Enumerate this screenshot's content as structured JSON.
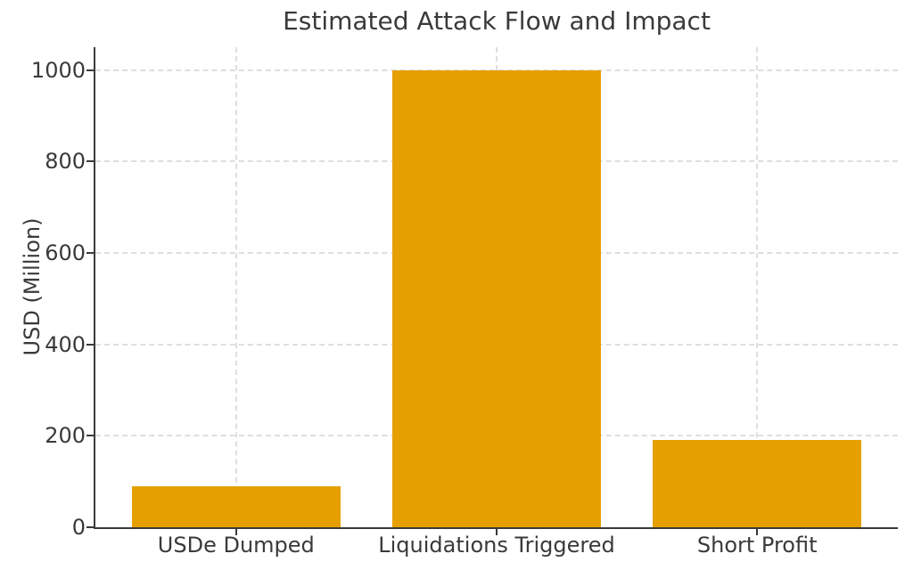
{
  "chart_data": {
    "type": "bar",
    "title": "Estimated Attack Flow and Impact",
    "categories": [
      "USDe Dumped",
      "Liquidations Triggered",
      "Short Profit"
    ],
    "values": [
      90,
      1000,
      190
    ],
    "xlabel": "",
    "ylabel": "USD (Million)",
    "ylim": [
      0,
      1050
    ],
    "yticks": [
      0,
      200,
      400,
      600,
      800,
      1000
    ],
    "bar_width_fraction": 0.8,
    "grid": "dashed",
    "legend": "none",
    "colors": {
      "bar": "#E69F00",
      "grid": "#dedede",
      "spine": "#3a3a3a",
      "text": "#3a3a3a",
      "background": "#ffffff"
    }
  }
}
